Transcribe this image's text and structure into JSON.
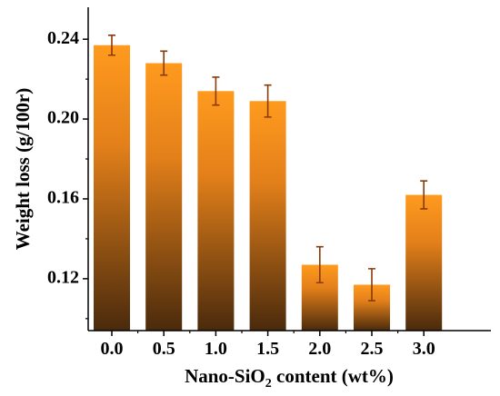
{
  "chart_data": {
    "type": "bar",
    "categories": [
      "0.0",
      "0.5",
      "1.0",
      "1.5",
      "2.0",
      "2.5",
      "3.0"
    ],
    "values": [
      0.237,
      0.228,
      0.214,
      0.209,
      0.127,
      0.117,
      0.162
    ],
    "errors": [
      0.005,
      0.006,
      0.007,
      0.008,
      0.009,
      0.008,
      0.007
    ],
    "ylim": [
      0.094,
      0.256
    ],
    "yticks": [
      "0.12",
      "0.16",
      "0.20",
      "0.24"
    ],
    "ytick_values": [
      0.12,
      0.16,
      0.2,
      0.24
    ],
    "ylabel": "Weight loss (g/100r)",
    "xlabel": {
      "prefix": "Nano-SiO",
      "sub": "2",
      "suffix": " content (wt%)"
    },
    "grid": false,
    "colors": {
      "bar_top": "#ff9a1e",
      "bar_bottom": "#4a2a0c",
      "error_bar": "#8a3a08"
    }
  }
}
